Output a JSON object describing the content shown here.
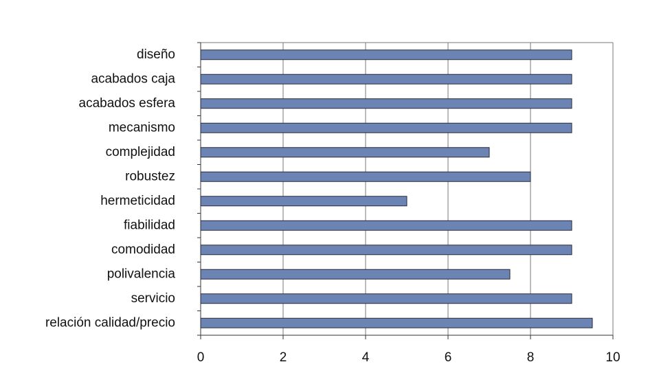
{
  "chart_data": {
    "type": "barh",
    "categories": [
      "diseño",
      "acabados caja",
      "acabados esfera",
      "mecanismo",
      "complejidad",
      "robustez",
      "hermeticidad",
      "fiabilidad",
      "comodidad",
      "polivalencia",
      "servicio",
      "relación calidad/precio"
    ],
    "values": [
      9,
      9,
      9,
      9,
      7,
      8,
      5,
      9,
      9,
      7.5,
      9,
      9.5
    ],
    "color": "#6b84b4",
    "xlim": [
      0,
      10
    ],
    "xticks": [
      0,
      2,
      4,
      6,
      8,
      10
    ],
    "grid": true
  }
}
